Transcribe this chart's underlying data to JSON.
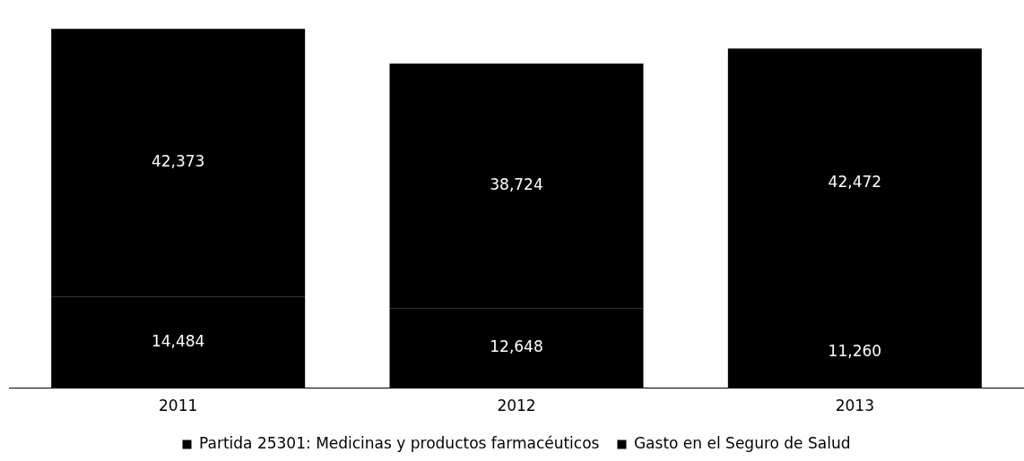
{
  "chart_data": {
    "type": "bar",
    "stacked": true,
    "categories": [
      "2011",
      "2012",
      "2013"
    ],
    "series": [
      {
        "name": "Partida 25301: Medicinas y productos farmacéuticos",
        "color": "#000000",
        "values": [
          14484,
          12648,
          11260
        ],
        "value_labels": [
          "14,484",
          "12,648",
          "11,260"
        ]
      },
      {
        "name": "Gasto en el Seguro de Salud",
        "color": "#000000",
        "values": [
          42373,
          38724,
          42472
        ],
        "value_labels": [
          "42,373",
          "38,724",
          "42,472"
        ]
      }
    ],
    "legend": "bottom",
    "grid": false
  }
}
